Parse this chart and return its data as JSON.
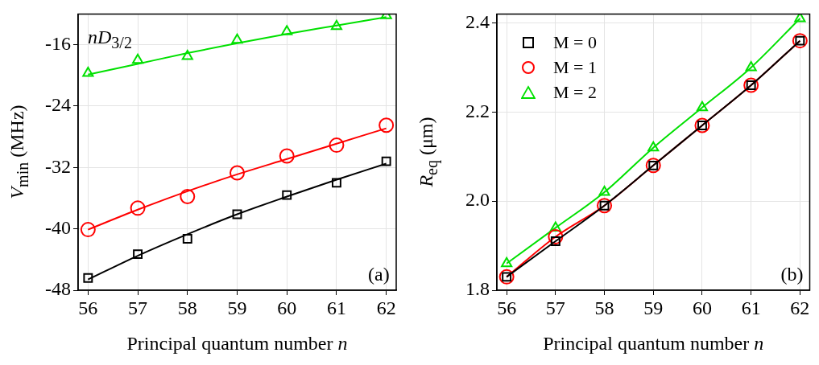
{
  "chart_data": [
    {
      "type": "scatter",
      "xlabel": "Principal quantum number n",
      "ylabel": "V$_{min}$ (MHz)",
      "annotations": [
        "nD$_{3/2}$",
        "(a)"
      ],
      "x": [
        56,
        57,
        58,
        59,
        60,
        61,
        62
      ],
      "xlim": [
        55.8,
        62.2
      ],
      "xticks": [
        56,
        57,
        58,
        59,
        60,
        61,
        62
      ],
      "ylim": [
        -48,
        -12
      ],
      "yticks": [
        -48,
        -40,
        -32,
        -24,
        -16
      ],
      "grid": true,
      "series": [
        {
          "color": "#000000",
          "marker": "square",
          "values": [
            -46.4,
            -43.3,
            -41.3,
            -38.1,
            -35.6,
            -34.0,
            -31.2
          ]
        },
        {
          "color": "#ff0000",
          "marker": "circle",
          "values": [
            -40.1,
            -37.3,
            -35.8,
            -32.7,
            -30.5,
            -29.1,
            -26.5
          ]
        },
        {
          "color": "#00e000",
          "marker": "triangle",
          "values": [
            -19.7,
            -18.0,
            -17.5,
            -15.4,
            -14.3,
            -13.6,
            -12.2
          ]
        },
        {
          "type": "line",
          "color": "#000000",
          "values": [
            -46.6,
            -43.5,
            -40.7,
            -38.1,
            -35.8,
            -33.6,
            -31.5
          ]
        },
        {
          "type": "line",
          "color": "#ff0000",
          "values": [
            -40.1,
            -37.5,
            -35.1,
            -32.9,
            -30.9,
            -28.9,
            -26.9
          ]
        },
        {
          "type": "line",
          "color": "#00e000",
          "values": [
            -19.9,
            -18.5,
            -17.1,
            -15.8,
            -14.6,
            -13.5,
            -12.4
          ]
        }
      ]
    },
    {
      "type": "line",
      "xlabel": "Principal quantum number n",
      "ylabel": "R$_{eq}$ (μm)",
      "annotations": [
        "(b)"
      ],
      "legend": "top left",
      "x": [
        56,
        57,
        58,
        59,
        60,
        61,
        62
      ],
      "xlim": [
        55.8,
        62.2
      ],
      "xticks": [
        56,
        57,
        58,
        59,
        60,
        61,
        62
      ],
      "ylim": [
        1.8,
        2.42
      ],
      "yticks": [
        {
          "value": 1.8,
          "label": "1.8"
        },
        {
          "value": 2,
          "label": "2.0"
        },
        {
          "value": 2.2,
          "label": "2.2"
        },
        {
          "value": 2.4,
          "label": "2.4"
        }
      ],
      "grid": true,
      "series": [
        {
          "name": "M = 0",
          "color": "#000000",
          "marker": "square",
          "values": [
            1.83,
            1.91,
            1.99,
            2.08,
            2.17,
            2.26,
            2.36
          ]
        },
        {
          "name": "M = 1",
          "color": "#ff0000",
          "marker": "circle",
          "values": [
            1.83,
            1.92,
            1.99,
            2.08,
            2.17,
            2.26,
            2.36
          ]
        },
        {
          "name": "M = 2",
          "color": "#00e000",
          "marker": "triangle",
          "values": [
            1.86,
            1.94,
            2.02,
            2.12,
            2.21,
            2.3,
            2.41
          ]
        }
      ]
    }
  ]
}
